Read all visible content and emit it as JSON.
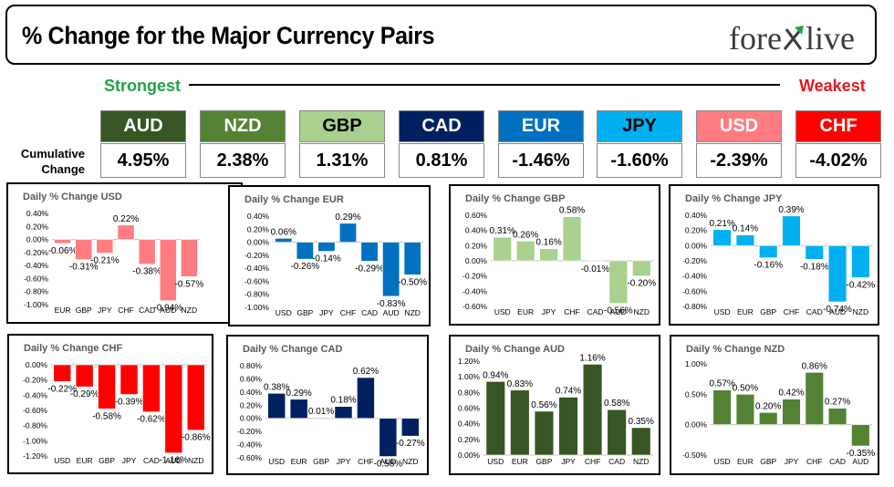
{
  "header": {
    "title": "% Change for the Major Currency Pairs",
    "logo_text": "forexlive"
  },
  "strength": {
    "strongest_label": "Strongest",
    "weakest_label": "Weakest",
    "cumulative_label": "Cumulative Change"
  },
  "currencies": [
    {
      "code": "AUD",
      "value": "4.95%",
      "color": "#375623",
      "text_color": "#ffffff"
    },
    {
      "code": "NZD",
      "value": "2.38%",
      "color": "#548235",
      "text_color": "#ffffff"
    },
    {
      "code": "GBP",
      "value": "1.31%",
      "color": "#a9d08e",
      "text_color": "#000000"
    },
    {
      "code": "CAD",
      "value": "0.81%",
      "color": "#002060",
      "text_color": "#ffffff"
    },
    {
      "code": "EUR",
      "value": "-1.46%",
      "color": "#0070c0",
      "text_color": "#ffffff"
    },
    {
      "code": "JPY",
      "value": "-1.60%",
      "color": "#00b0f0",
      "text_color": "#000000"
    },
    {
      "code": "USD",
      "value": "-2.39%",
      "color": "#ff7c80",
      "text_color": "#ffffff"
    },
    {
      "code": "CHF",
      "value": "-4.02%",
      "color": "#ff0000",
      "text_color": "#ffffff"
    }
  ],
  "chart_data": [
    {
      "type": "bar",
      "title": "Daily % Change USD",
      "color": "#ff7c80",
      "categories": [
        "EUR",
        "GBP",
        "JPY",
        "CHF",
        "CAD",
        "AUD",
        "NZD"
      ],
      "values": [
        -0.06,
        -0.31,
        -0.21,
        0.22,
        -0.38,
        -0.94,
        -0.57
      ],
      "ylim": [
        -1.0,
        0.4
      ],
      "ticks": [
        0.4,
        0.2,
        0.0,
        -0.2,
        -0.4,
        -0.6,
        -0.8,
        -1.0
      ]
    },
    {
      "type": "bar",
      "title": "Daily % Change EUR",
      "color": "#0070c0",
      "categories": [
        "USD",
        "GBP",
        "JPY",
        "CHF",
        "CAD",
        "AUD",
        "NZD"
      ],
      "values": [
        0.06,
        -0.26,
        -0.14,
        0.29,
        -0.29,
        -0.83,
        -0.5
      ],
      "ylim": [
        -1.0,
        0.4
      ],
      "ticks": [
        0.4,
        0.2,
        0.0,
        -0.2,
        -0.4,
        -0.6,
        -0.8,
        -1.0
      ]
    },
    {
      "type": "bar",
      "title": "Daily % Change GBP",
      "color": "#a9d08e",
      "categories": [
        "USD",
        "EUR",
        "JPY",
        "CHF",
        "CAD",
        "AUD",
        "NZD"
      ],
      "values": [
        0.31,
        0.26,
        0.16,
        0.58,
        -0.01,
        -0.56,
        -0.2
      ],
      "ylim": [
        -0.6,
        0.6
      ],
      "ticks": [
        0.6,
        0.4,
        0.2,
        0.0,
        -0.2,
        -0.4,
        -0.6
      ]
    },
    {
      "type": "bar",
      "title": "Daily % Change JPY",
      "color": "#00b0f0",
      "categories": [
        "USD",
        "EUR",
        "GBP",
        "CHF",
        "CAD",
        "AUD",
        "NZD"
      ],
      "values": [
        0.21,
        0.14,
        -0.16,
        0.39,
        -0.18,
        -0.74,
        -0.42
      ],
      "ylim": [
        -0.8,
        0.4
      ],
      "ticks": [
        0.4,
        0.2,
        0.0,
        -0.2,
        -0.4,
        -0.6,
        -0.8
      ]
    },
    {
      "type": "bar",
      "title": "Daily % Change CHF",
      "color": "#ff0000",
      "categories": [
        "USD",
        "EUR",
        "GBP",
        "JPY",
        "CAD",
        "AUD",
        "NZD"
      ],
      "values": [
        -0.22,
        -0.29,
        -0.58,
        -0.39,
        -0.62,
        -1.16,
        -0.86
      ],
      "ylim": [
        -1.2,
        0.0
      ],
      "ticks": [
        0.0,
        -0.2,
        -0.4,
        -0.6,
        -0.8,
        -1.0,
        -1.2
      ]
    },
    {
      "type": "bar",
      "title": "Daily % Change CAD",
      "color": "#002060",
      "categories": [
        "USD",
        "EUR",
        "GBP",
        "JPY",
        "CHF",
        "AUD",
        "NZD"
      ],
      "values": [
        0.38,
        0.29,
        0.01,
        0.18,
        0.62,
        -0.58,
        -0.27
      ],
      "ylim": [
        -0.6,
        0.8
      ],
      "ticks": [
        0.8,
        0.6,
        0.4,
        0.2,
        0.0,
        -0.2,
        -0.4,
        -0.6
      ]
    },
    {
      "type": "bar",
      "title": "Daily % Change AUD",
      "color": "#375623",
      "categories": [
        "USD",
        "EUR",
        "GBP",
        "JPY",
        "CHF",
        "CAD",
        "NZD"
      ],
      "values": [
        0.94,
        0.83,
        0.56,
        0.74,
        1.16,
        0.58,
        0.35
      ],
      "ylim": [
        0.0,
        1.2
      ],
      "ticks": [
        1.2,
        1.0,
        0.8,
        0.6,
        0.4,
        0.2,
        0.0
      ]
    },
    {
      "type": "bar",
      "title": "Daily % Change NZD",
      "color": "#548235",
      "categories": [
        "USD",
        "EUR",
        "GBP",
        "JPY",
        "CHF",
        "CAD",
        "AUD"
      ],
      "values": [
        0.57,
        0.5,
        0.2,
        0.42,
        0.86,
        0.27,
        -0.35
      ],
      "ylim": [
        -0.5,
        1.0
      ],
      "ticks": [
        1.0,
        0.5,
        0.0,
        -0.5
      ]
    }
  ]
}
